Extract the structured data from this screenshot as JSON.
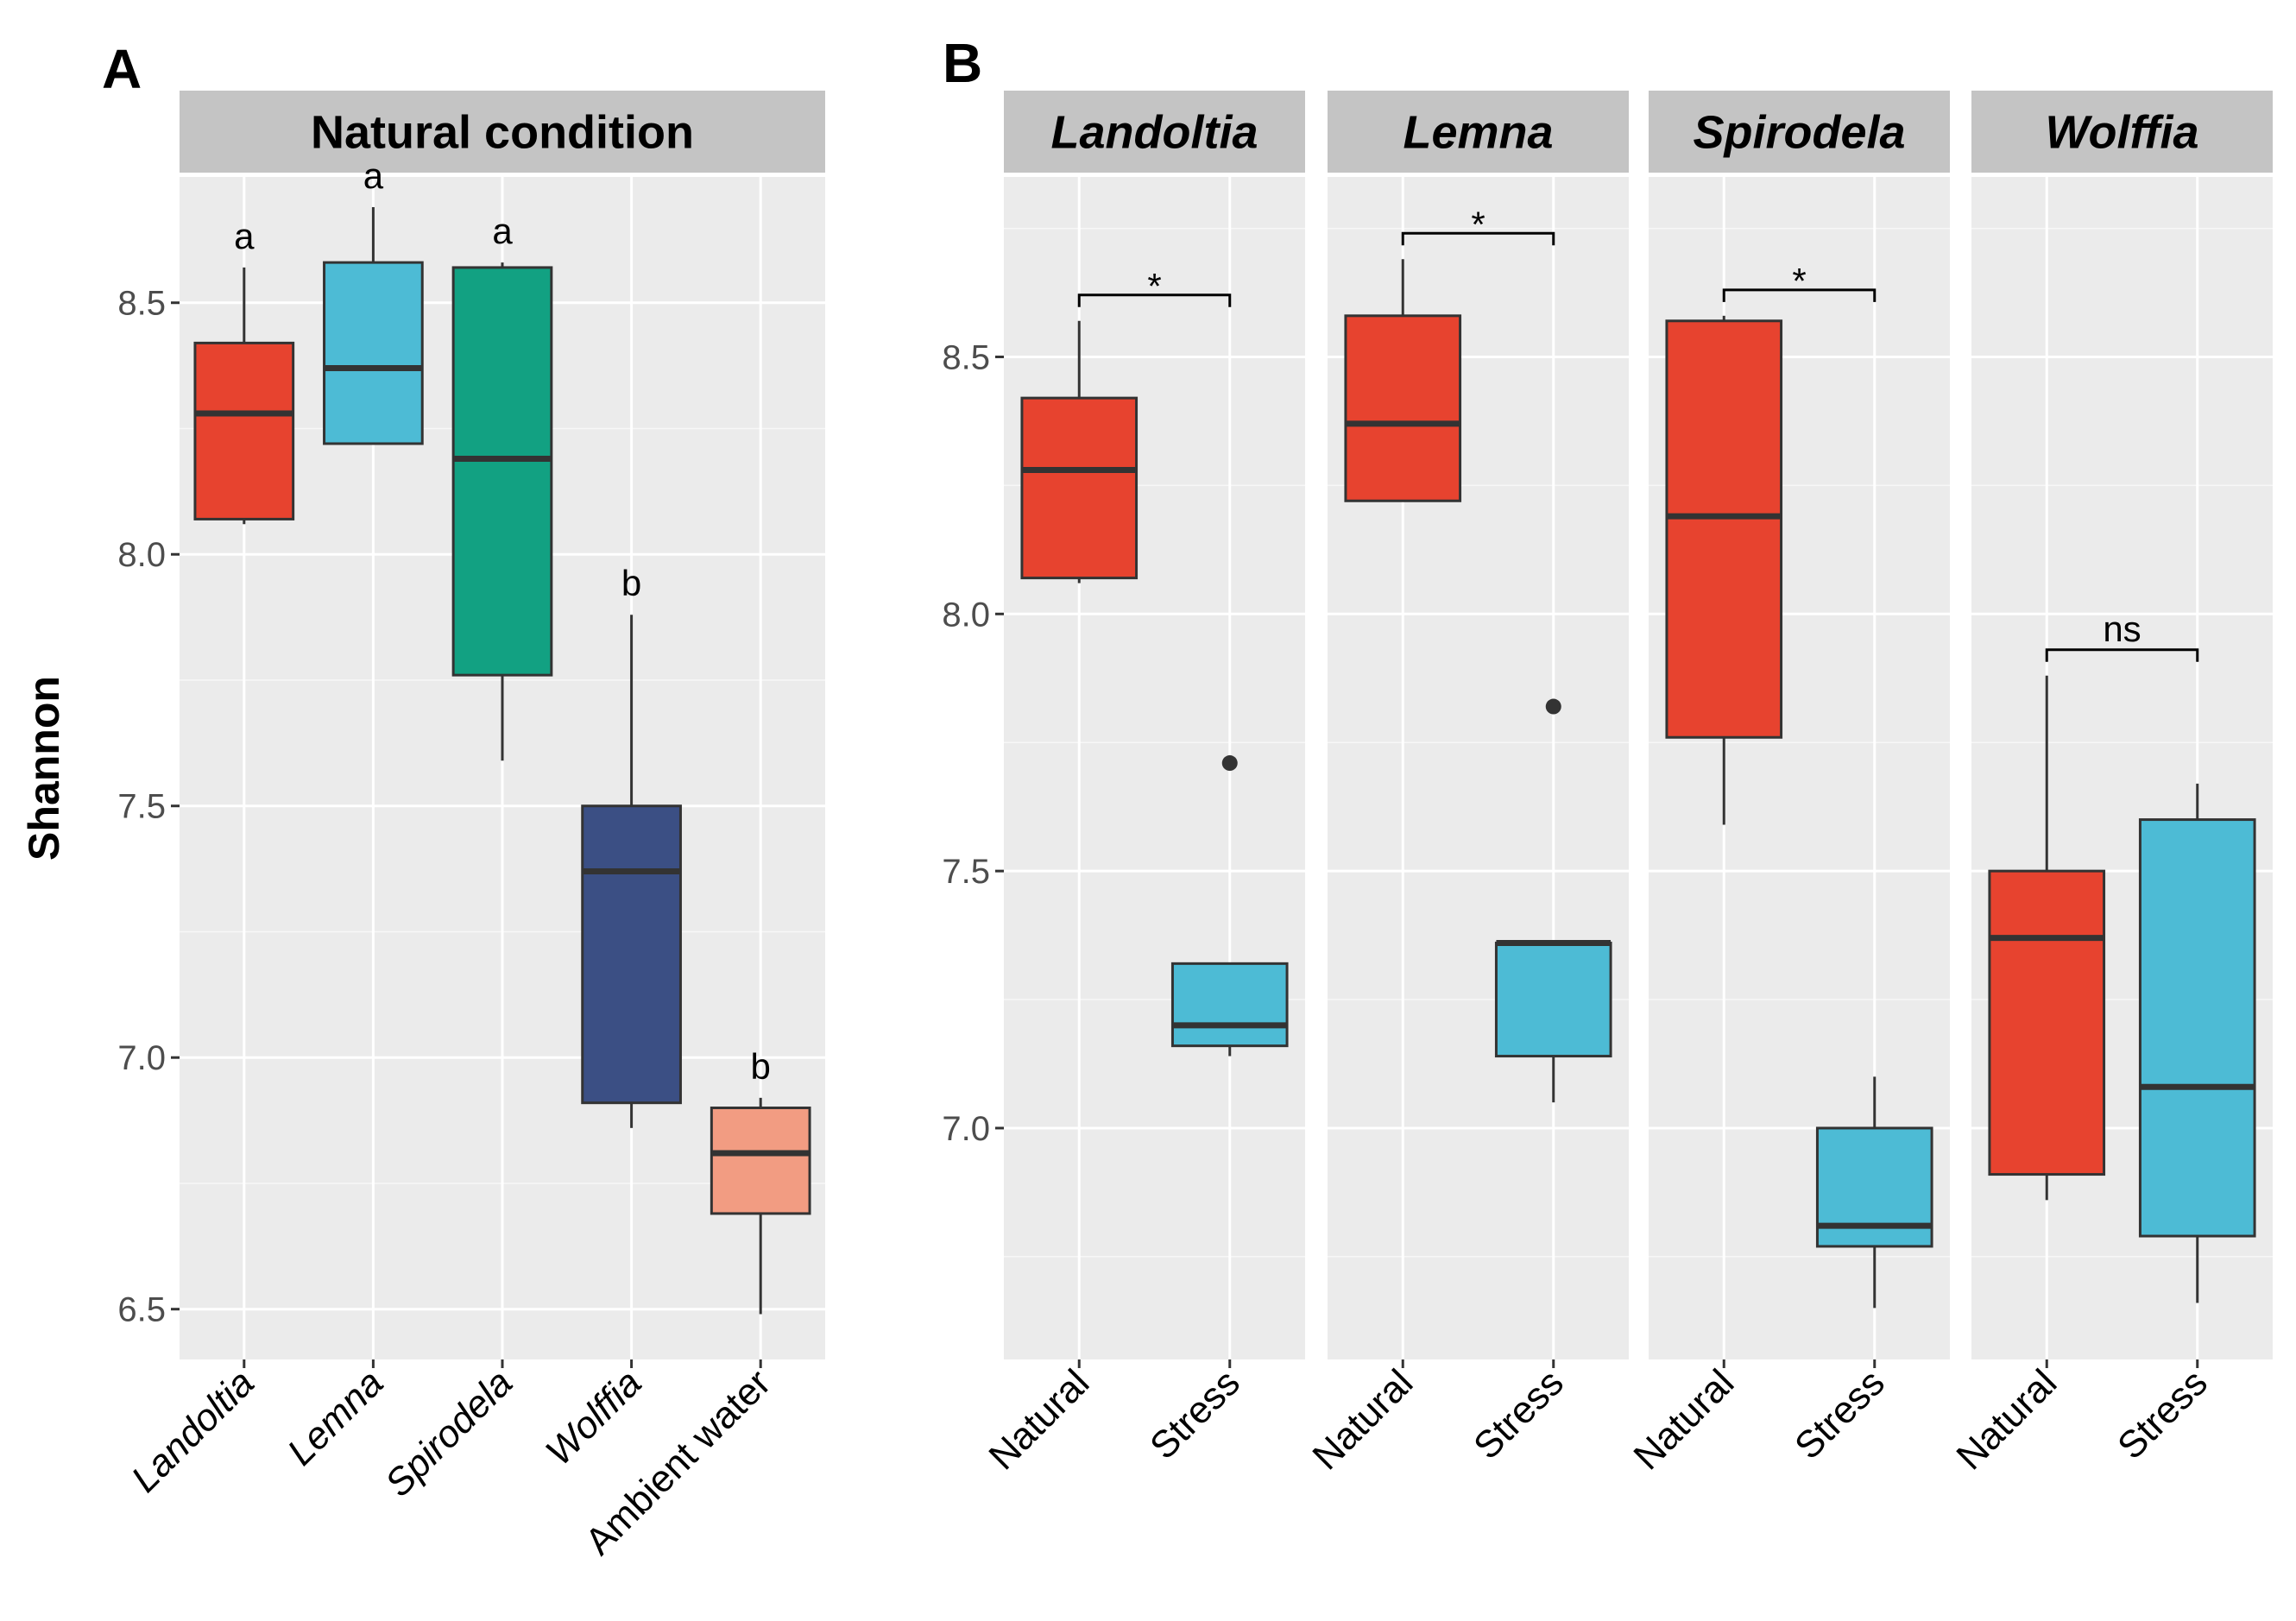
{
  "chart_data": [
    {
      "panel": "A",
      "type": "box",
      "title": "Natural condition",
      "ylabel": "Shannon",
      "ylim": [
        6.4,
        8.75
      ],
      "yticks": [
        6.5,
        7.0,
        7.5,
        8.0,
        8.5
      ],
      "ytick_labels": [
        "6.5",
        "7.0",
        "7.5",
        "8.0",
        "8.5"
      ],
      "categories": [
        "Landoltia",
        "Lemna",
        "Spirodela",
        "Wolffia",
        "Ambient water"
      ],
      "boxes": [
        {
          "name": "Landoltia",
          "min": 8.06,
          "q1": 8.07,
          "median": 8.28,
          "q3": 8.42,
          "max": 8.57,
          "color": "#E7432F",
          "letter": "a",
          "outliers": []
        },
        {
          "name": "Lemna",
          "min": 8.22,
          "q1": 8.22,
          "median": 8.37,
          "q3": 8.58,
          "max": 8.69,
          "color": "#4DBBD5",
          "letter": "a",
          "outliers": []
        },
        {
          "name": "Spirodela",
          "min": 7.59,
          "q1": 7.76,
          "median": 8.19,
          "q3": 8.57,
          "max": 8.58,
          "color": "#12A182",
          "letter": "a",
          "outliers": []
        },
        {
          "name": "Wolffia",
          "min": 6.86,
          "q1": 6.91,
          "median": 7.37,
          "q3": 7.5,
          "max": 7.88,
          "color": "#3B4F84",
          "letter": "b",
          "outliers": []
        },
        {
          "name": "Ambient water",
          "min": 6.49,
          "q1": 6.69,
          "median": 6.81,
          "q3": 6.9,
          "max": 6.92,
          "color": "#F29C82",
          "letter": "b",
          "outliers": []
        }
      ]
    },
    {
      "panel": "B",
      "type": "box",
      "ylim": [
        6.55,
        8.85
      ],
      "yticks": [
        7.0,
        7.5,
        8.0,
        8.5
      ],
      "ytick_labels": [
        "7.0",
        "7.5",
        "8.0",
        "8.5"
      ],
      "categories": [
        "Natural",
        "Stress"
      ],
      "colors": {
        "Natural": "#E7432F",
        "Stress": "#4DBBD5"
      },
      "facets": [
        {
          "title": "Landoltia",
          "signif": "*",
          "boxes": [
            {
              "name": "Natural",
              "min": 8.06,
              "q1": 8.07,
              "median": 8.28,
              "q3": 8.42,
              "max": 8.57,
              "outliers": []
            },
            {
              "name": "Stress",
              "min": 7.14,
              "q1": 7.16,
              "median": 7.2,
              "q3": 7.32,
              "max": 7.32,
              "outliers": [
                7.71
              ]
            }
          ]
        },
        {
          "title": "Lemna",
          "signif": "*",
          "boxes": [
            {
              "name": "Natural",
              "min": 8.22,
              "q1": 8.22,
              "median": 8.37,
              "q3": 8.58,
              "max": 8.69,
              "outliers": []
            },
            {
              "name": "Stress",
              "min": 7.05,
              "q1": 7.14,
              "median": 7.36,
              "q3": 7.36,
              "max": 7.36,
              "outliers": [
                7.82
              ]
            }
          ]
        },
        {
          "title": "Spirodela",
          "signif": "*",
          "boxes": [
            {
              "name": "Natural",
              "min": 7.59,
              "q1": 7.76,
              "median": 8.19,
              "q3": 8.57,
              "max": 8.58,
              "outliers": []
            },
            {
              "name": "Stress",
              "min": 6.65,
              "q1": 6.77,
              "median": 6.81,
              "q3": 7.0,
              "max": 7.1,
              "outliers": []
            }
          ]
        },
        {
          "title": "Wolffia",
          "signif": "ns",
          "boxes": [
            {
              "name": "Natural",
              "min": 6.86,
              "q1": 6.91,
              "median": 7.37,
              "q3": 7.5,
              "max": 7.88,
              "outliers": []
            },
            {
              "name": "Stress",
              "min": 6.66,
              "q1": 6.79,
              "median": 7.08,
              "q3": 7.6,
              "max": 7.67,
              "outliers": []
            }
          ]
        }
      ]
    }
  ]
}
